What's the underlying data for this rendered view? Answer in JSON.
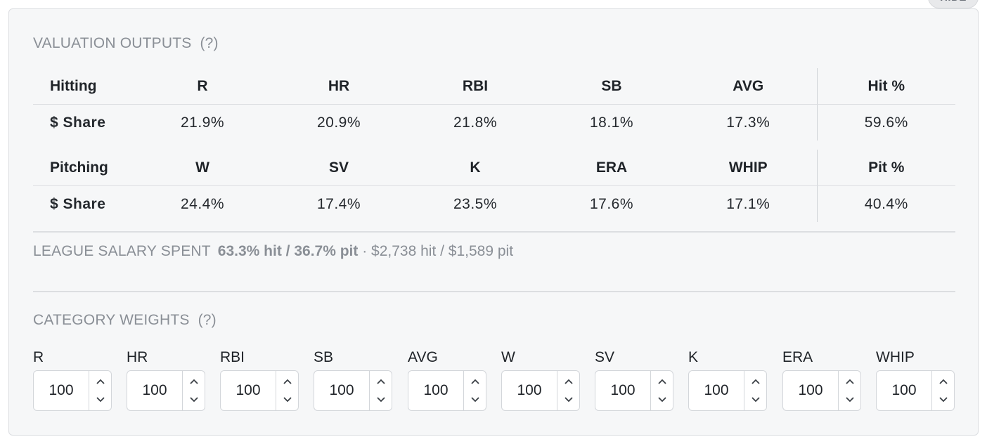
{
  "hide_label": "HIDE",
  "valuation": {
    "title": "VALUATION OUTPUTS",
    "help": "(?)",
    "hitting": {
      "headers": [
        "Hitting",
        "R",
        "HR",
        "RBI",
        "SB",
        "AVG",
        "Hit %"
      ],
      "values": [
        "$ Share",
        "21.9%",
        "20.9%",
        "21.8%",
        "18.1%",
        "17.3%",
        "59.6%"
      ]
    },
    "pitching": {
      "headers": [
        "Pitching",
        "W",
        "SV",
        "K",
        "ERA",
        "WHIP",
        "Pit %"
      ],
      "values": [
        "$ Share",
        "24.4%",
        "17.4%",
        "23.5%",
        "17.6%",
        "17.1%",
        "40.4%"
      ]
    }
  },
  "salary": {
    "label": "LEAGUE SALARY SPENT",
    "pct": "63.3% hit / 36.7% pit",
    "dollars": "· $2,738 hit / $1,589 pit"
  },
  "weights": {
    "title": "CATEGORY WEIGHTS",
    "help": "(?)",
    "items": [
      {
        "label": "R",
        "value": "100"
      },
      {
        "label": "HR",
        "value": "100"
      },
      {
        "label": "RBI",
        "value": "100"
      },
      {
        "label": "SB",
        "value": "100"
      },
      {
        "label": "AVG",
        "value": "100"
      },
      {
        "label": "W",
        "value": "100"
      },
      {
        "label": "SV",
        "value": "100"
      },
      {
        "label": "K",
        "value": "100"
      },
      {
        "label": "ERA",
        "value": "100"
      },
      {
        "label": "WHIP",
        "value": "100"
      }
    ]
  }
}
